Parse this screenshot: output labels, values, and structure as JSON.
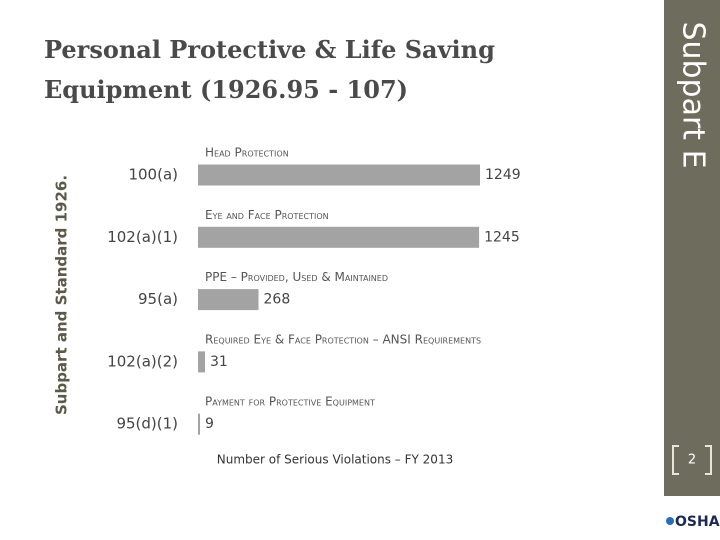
{
  "slide": {
    "section": "Subpart E",
    "page_number": "2",
    "logo": "OSHA"
  },
  "chart_data": {
    "type": "bar",
    "orientation": "horizontal",
    "title": [
      "Personal Protective & Life Saving",
      "Equipment (1926.95 - 107)"
    ],
    "ylabel": "Subpart and Standard 1926.",
    "xlabel": "Number of Serious Violations – FY 2013",
    "categories": [
      "100(a)",
      "102(a)(1)",
      "95(a)",
      "102(a)(2)",
      "95(d)(1)"
    ],
    "descriptions": [
      "Head Protection",
      "Eye and Face Protection",
      "PPE – Provided, Used & Maintained",
      "Required Eye & Face Protection – ANSI Requirements",
      "Payment for Protective Equipment"
    ],
    "values": [
      1249,
      1245,
      268,
      31,
      9
    ],
    "color": "#a3a3a3"
  }
}
